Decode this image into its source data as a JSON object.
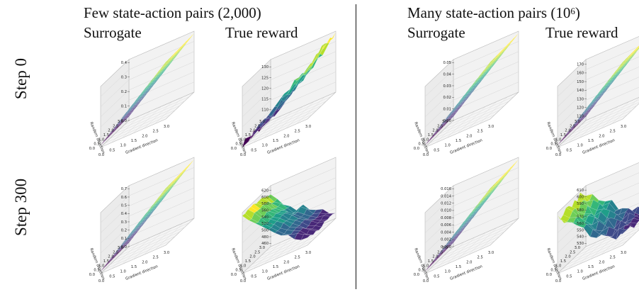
{
  "groups": [
    {
      "title_main": "Few state-action pairs (2,000)",
      "title_sup": ""
    },
    {
      "title_main": "Many state-action pairs (10",
      "title_sup": "6",
      "title_end": ")"
    }
  ],
  "col_labels": [
    "Surrogate",
    "True reward",
    "Surrogate",
    "True reward"
  ],
  "row_labels": [
    "Step 0",
    "Step 300"
  ],
  "axis_labels": {
    "x": "Gradient direction",
    "y": "Random direction"
  },
  "axis_ticks": {
    "xy": [
      "0.0",
      "0.5",
      "1.0",
      "1.5",
      "2.0",
      "2.5",
      "3.0"
    ]
  },
  "colormap": [
    "#440154",
    "#482878",
    "#3e4a89",
    "#31688e",
    "#26828e",
    "#1f9e89",
    "#35b779",
    "#6ece58",
    "#b5de2b",
    "#fde725"
  ],
  "chart_data": [
    {
      "type": "surface",
      "group": "Few state-action pairs (2,000)",
      "row": "Step 0",
      "col": "Surrogate",
      "z_ticks": [
        "0.0",
        "0.1",
        "0.2",
        "0.3",
        "0.4"
      ],
      "zlim": [
        0.0,
        0.4
      ],
      "shape": "ramp",
      "trend": "increasing along gradient direction"
    },
    {
      "type": "surface",
      "group": "Few state-action pairs (2,000)",
      "row": "Step 0",
      "col": "True reward",
      "z_ticks": [
        "110",
        "115",
        "120",
        "125",
        "130"
      ],
      "zlim": [
        105,
        132
      ],
      "shape": "ramp-noisy",
      "trend": "increasing along gradient direction"
    },
    {
      "type": "surface",
      "group": "Few state-action pairs (2,000)",
      "row": "Step 300",
      "col": "Surrogate",
      "z_ticks": [
        "0.0",
        "0.1",
        "0.2",
        "0.3",
        "0.4",
        "0.5",
        "0.6",
        "0.7"
      ],
      "zlim": [
        0.0,
        0.7
      ],
      "shape": "ramp",
      "trend": "increasing along gradient direction"
    },
    {
      "type": "surface",
      "group": "Few state-action pairs (2,000)",
      "row": "Step 300",
      "col": "True reward",
      "z_ticks": [
        "460",
        "480",
        "500",
        "520",
        "540",
        "560",
        "580",
        "600",
        "620"
      ],
      "zlim": [
        450,
        625
      ],
      "shape": "decline",
      "trend": "decreasing along gradient direction"
    },
    {
      "type": "surface",
      "group": "Many state-action pairs (10^6)",
      "row": "Step 0",
      "col": "Surrogate",
      "z_ticks": [
        "0.00",
        "0.01",
        "0.02",
        "0.03",
        "0.04",
        "0.05"
      ],
      "zlim": [
        0.0,
        0.05
      ],
      "shape": "ramp",
      "trend": "increasing along gradient direction"
    },
    {
      "type": "surface",
      "group": "Many state-action pairs (10^6)",
      "row": "Step 0",
      "col": "True reward",
      "z_ticks": [
        "110",
        "120",
        "130",
        "140",
        "150",
        "160",
        "170"
      ],
      "zlim": [
        105,
        172
      ],
      "shape": "ramp",
      "trend": "increasing along gradient direction"
    },
    {
      "type": "surface",
      "group": "Many state-action pairs (10^6)",
      "row": "Step 300",
      "col": "Surrogate",
      "z_ticks": [
        "0.000",
        "0.002",
        "0.004",
        "0.006",
        "0.008",
        "0.010",
        "0.012",
        "0.014",
        "0.016"
      ],
      "zlim": [
        0.0,
        0.016
      ],
      "shape": "ramp",
      "trend": "increasing along gradient direction"
    },
    {
      "type": "surface",
      "group": "Many state-action pairs (10^6)",
      "row": "Step 300",
      "col": "True reward",
      "z_ticks": [
        "530",
        "540",
        "550",
        "560",
        "570",
        "580",
        "590",
        "600",
        "610"
      ],
      "zlim": [
        525,
        612
      ],
      "shape": "decline-noisy",
      "trend": "decreasing along gradient direction"
    }
  ]
}
